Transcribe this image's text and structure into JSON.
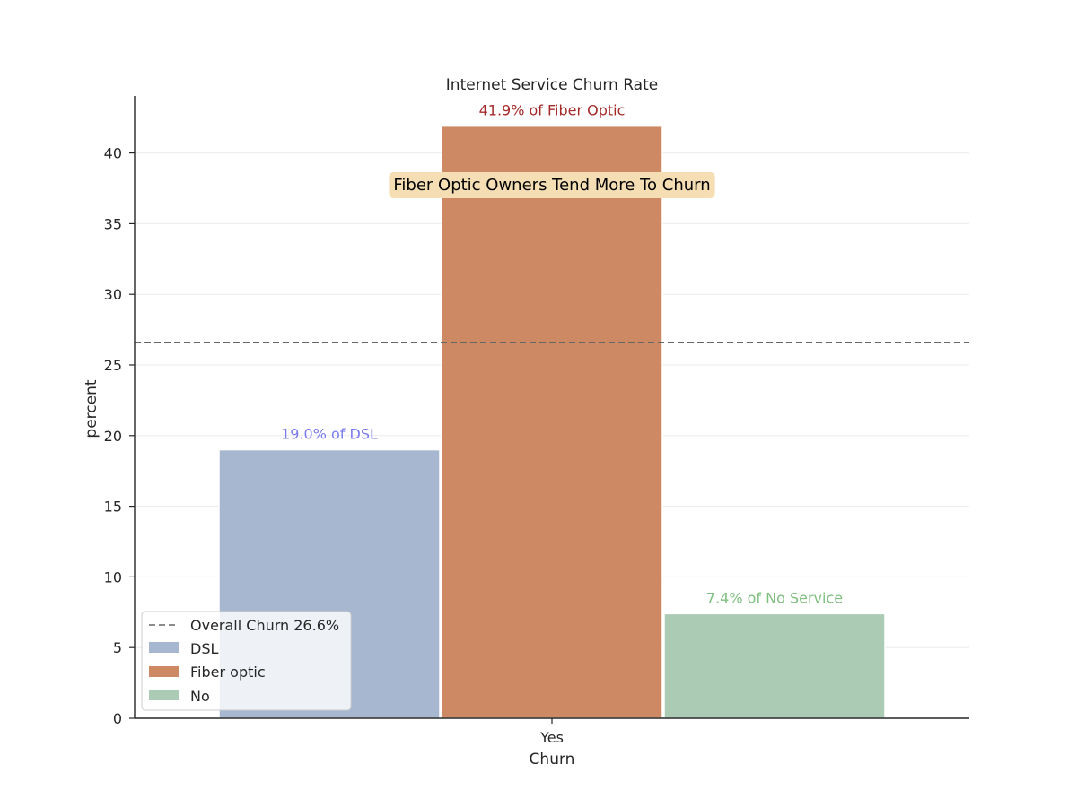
{
  "chart_data": {
    "type": "bar",
    "title": "Internet Service Churn Rate",
    "xlabel": "Churn",
    "ylabel": "percent",
    "categories": [
      "Yes"
    ],
    "ylim": [
      0,
      44
    ],
    "yticks": [
      0,
      5,
      10,
      15,
      20,
      25,
      30,
      35,
      40
    ],
    "grid": "horizontal",
    "legend_placement": "lower-left",
    "series": [
      {
        "name": "DSL",
        "values": [
          19.0
        ],
        "color": "#a8b7d0",
        "data_label": "19.0% of DSL",
        "label_color": "#7b7bef"
      },
      {
        "name": "Fiber optic",
        "values": [
          41.9
        ],
        "color": "#cc8963",
        "data_label": "41.9% of Fiber Optic",
        "label_color": "#a52a2a"
      },
      {
        "name": "No",
        "values": [
          7.4
        ],
        "color": "#abcbb4",
        "data_label": "7.4% of No Service",
        "label_color": "#7fbf7f"
      }
    ],
    "reference_line": {
      "value": 26.6,
      "label": "Overall Churn 26.6%",
      "style": "dashed",
      "color": "#666666"
    },
    "annotation": {
      "text": "Fiber Optic Owners Tend More To Churn",
      "box_color": "#f5deb3"
    }
  }
}
